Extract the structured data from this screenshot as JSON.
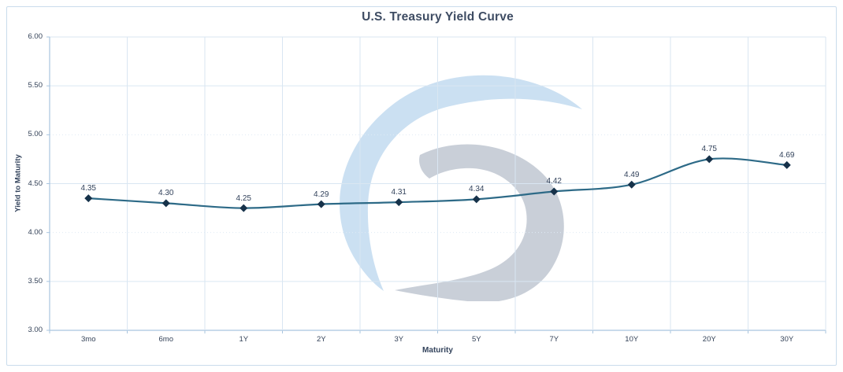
{
  "card": {
    "background": "#ffffff",
    "border_color": "#c9dcec"
  },
  "chart_data": {
    "type": "line",
    "title": "U.S. Treasury Yield Curve",
    "xlabel": "Maturity",
    "ylabel": "Yield to Maturity",
    "categories": [
      "3mo",
      "6mo",
      "1Y",
      "2Y",
      "3Y",
      "5Y",
      "7Y",
      "10Y",
      "20Y",
      "30Y"
    ],
    "series": [
      {
        "name": "Yield to Maturity",
        "values": [
          4.35,
          4.3,
          4.25,
          4.29,
          4.31,
          4.34,
          4.42,
          4.49,
          4.75,
          4.69
        ]
      }
    ],
    "point_labels": [
      "4.35",
      "4.30",
      "4.25",
      "4.29",
      "4.31",
      "4.34",
      "4.42",
      "4.49",
      "4.75",
      "4.69"
    ],
    "ylim": [
      3.0,
      6.0
    ],
    "y_tick_values": [
      6.0,
      5.5,
      5.0,
      4.5,
      4.0,
      3.5,
      3.0
    ],
    "y_tick_labels": [
      "6.00",
      "5.50",
      "5.00",
      "4.50",
      "4.00",
      "3.50",
      "3.00"
    ],
    "dotted_gridline_values": [
      5.0,
      4.0
    ],
    "grid": true,
    "legend": false,
    "line_smooth": true,
    "marker": "diamond",
    "colors": {
      "line": "#2d6a87",
      "marker": "#16324a",
      "gridline": "#d9e6f2",
      "gridline_dotted": "#dfeaf4",
      "axis_line": "#a9c5df",
      "title_text": "#3e4c63",
      "tick_text": "#344258",
      "label_text": "#33435c"
    }
  },
  "watermark": {
    "name": "circular-swoosh-logo",
    "blue": "#cbe0f2",
    "gray": "#c9cfd8"
  }
}
